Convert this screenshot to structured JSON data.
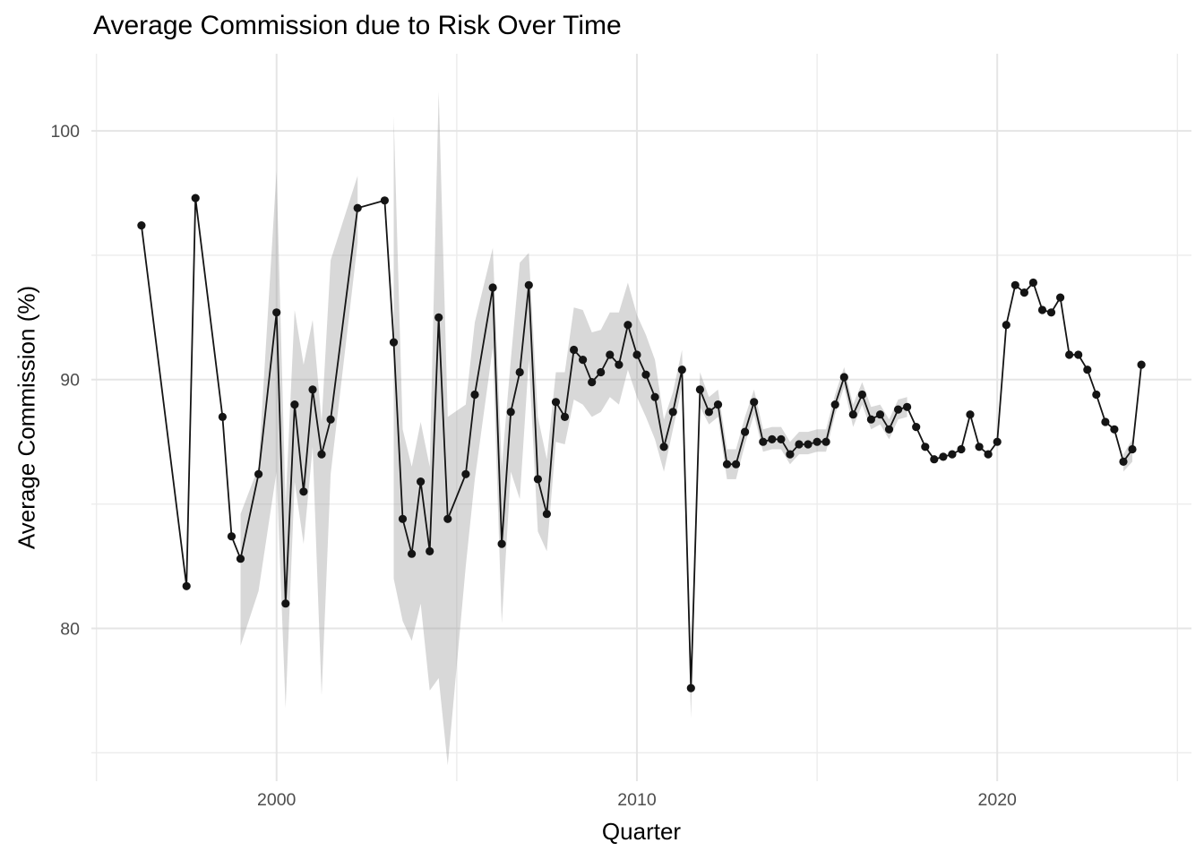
{
  "title": "Average Commission due to Risk Over Time",
  "chart_data": {
    "type": "line",
    "title": "Average Commission due to Risk Over Time",
    "xlabel": "Quarter",
    "ylabel": "Average Commission (%)",
    "legend_position": "none",
    "grid": true,
    "marker": "circle",
    "x_tick_labels": [
      "2000",
      "2010",
      "2020"
    ],
    "x_tick_years": [
      2000,
      2010,
      2020
    ],
    "x_minor_years": [
      1995,
      2005,
      2015,
      2025
    ],
    "y_tick_labels": [
      "100",
      "90",
      "80"
    ],
    "y_tick_values": [
      100,
      90,
      80
    ],
    "y_minor_values": [
      95,
      85,
      75
    ],
    "xlim": [
      1994.86,
      2025.39
    ],
    "ylim": [
      73.86,
      103.1
    ],
    "x_unit": "decimal year (quarterly)",
    "points": [
      [
        1996.25,
        96.2
      ],
      [
        1997.5,
        81.7
      ],
      [
        1997.75,
        97.3
      ],
      [
        1998.5,
        88.5
      ],
      [
        1998.75,
        83.7
      ],
      [
        1999.0,
        82.8
      ],
      [
        1999.5,
        86.2
      ],
      [
        2000.0,
        92.7
      ],
      [
        2000.25,
        81.0
      ],
      [
        2000.5,
        89.0
      ],
      [
        2000.75,
        85.5
      ],
      [
        2001.0,
        89.6
      ],
      [
        2001.25,
        87.0
      ],
      [
        2001.5,
        88.4
      ],
      [
        2002.25,
        96.9
      ],
      [
        2003.0,
        97.2
      ],
      [
        2003.25,
        91.5
      ],
      [
        2003.5,
        84.4
      ],
      [
        2003.75,
        83.0
      ],
      [
        2004.0,
        85.9
      ],
      [
        2004.25,
        83.1
      ],
      [
        2004.5,
        92.5
      ],
      [
        2004.75,
        84.4
      ],
      [
        2005.25,
        86.2
      ],
      [
        2005.5,
        89.4
      ],
      [
        2006.0,
        93.7
      ],
      [
        2006.25,
        83.4
      ],
      [
        2006.5,
        88.7
      ],
      [
        2006.75,
        90.3
      ],
      [
        2007.0,
        93.8
      ],
      [
        2007.25,
        86.0
      ],
      [
        2007.5,
        84.6
      ],
      [
        2007.75,
        89.1
      ],
      [
        2008.0,
        88.5
      ],
      [
        2008.25,
        91.2
      ],
      [
        2008.5,
        90.8
      ],
      [
        2008.75,
        89.9
      ],
      [
        2009.0,
        90.3
      ],
      [
        2009.25,
        91.0
      ],
      [
        2009.5,
        90.6
      ],
      [
        2009.75,
        92.2
      ],
      [
        2010.0,
        91.0
      ],
      [
        2010.25,
        90.2
      ],
      [
        2010.5,
        89.3
      ],
      [
        2010.75,
        87.3
      ],
      [
        2011.0,
        88.7
      ],
      [
        2011.25,
        90.4
      ],
      [
        2011.5,
        77.6
      ],
      [
        2011.75,
        89.6
      ],
      [
        2012.0,
        88.7
      ],
      [
        2012.25,
        89.0
      ],
      [
        2012.5,
        86.6
      ],
      [
        2012.75,
        86.6
      ],
      [
        2013.0,
        87.9
      ],
      [
        2013.25,
        89.1
      ],
      [
        2013.5,
        87.5
      ],
      [
        2013.75,
        87.6
      ],
      [
        2014.0,
        87.6
      ],
      [
        2014.25,
        87.0
      ],
      [
        2014.5,
        87.4
      ],
      [
        2014.75,
        87.4
      ],
      [
        2015.0,
        87.5
      ],
      [
        2015.25,
        87.5
      ],
      [
        2015.5,
        89.0
      ],
      [
        2015.75,
        90.1
      ],
      [
        2016.0,
        88.6
      ],
      [
        2016.25,
        89.4
      ],
      [
        2016.5,
        88.4
      ],
      [
        2016.75,
        88.6
      ],
      [
        2017.0,
        88.0
      ],
      [
        2017.25,
        88.8
      ],
      [
        2017.5,
        88.9
      ],
      [
        2017.75,
        88.1
      ],
      [
        2018.0,
        87.3
      ],
      [
        2018.25,
        86.8
      ],
      [
        2018.5,
        86.9
      ],
      [
        2018.75,
        87.0
      ],
      [
        2019.0,
        87.2
      ],
      [
        2019.25,
        88.6
      ],
      [
        2019.5,
        87.3
      ],
      [
        2019.75,
        87.0
      ],
      [
        2020.0,
        87.5
      ],
      [
        2020.25,
        92.2
      ],
      [
        2020.5,
        93.8
      ],
      [
        2020.75,
        93.5
      ],
      [
        2021.0,
        93.9
      ],
      [
        2021.25,
        92.8
      ],
      [
        2021.5,
        92.7
      ],
      [
        2021.75,
        93.3
      ],
      [
        2022.0,
        91.0
      ],
      [
        2022.25,
        91.0
      ],
      [
        2022.5,
        90.4
      ],
      [
        2022.75,
        89.4
      ],
      [
        2023.0,
        88.3
      ],
      [
        2023.25,
        88.0
      ],
      [
        2023.5,
        86.7
      ],
      [
        2023.75,
        87.2
      ],
      [
        2024.0,
        90.6
      ]
    ],
    "ribbon_segments": [
      [
        [
          1999.0,
          79.3,
          84.6
        ],
        [
          1999.5,
          81.5,
          86.5
        ],
        [
          2000.0,
          86.3,
          98.4
        ],
        [
          2000.25,
          76.8,
          85.0
        ],
        [
          2000.5,
          85.9,
          92.8
        ],
        [
          2000.75,
          83.4,
          90.6
        ],
        [
          2001.0,
          87.3,
          92.4
        ],
        [
          2001.25,
          77.3,
          88.3
        ],
        [
          2001.5,
          86.2,
          94.8
        ],
        [
          2002.25,
          95.5,
          98.2
        ]
      ],
      [
        [
          2003.25,
          82.0,
          100.6
        ],
        [
          2003.5,
          80.3,
          88.0
        ],
        [
          2003.75,
          79.5,
          86.5
        ],
        [
          2004.0,
          81.0,
          88.3
        ],
        [
          2004.25,
          77.5,
          86.5
        ],
        [
          2004.5,
          78.0,
          101.6
        ],
        [
          2004.75,
          74.5,
          88.5
        ],
        [
          2005.25,
          82.5,
          89.0
        ],
        [
          2005.5,
          86.0,
          92.3
        ],
        [
          2006.0,
          91.3,
          95.3
        ],
        [
          2006.25,
          80.2,
          86.5
        ],
        [
          2006.5,
          86.3,
          90.8
        ],
        [
          2006.75,
          85.2,
          94.7
        ],
        [
          2007.0,
          90.8,
          95.1
        ],
        [
          2007.25,
          83.9,
          88.5
        ],
        [
          2007.5,
          83.1,
          86.8
        ],
        [
          2007.75,
          87.5,
          90.3
        ],
        [
          2008.0,
          87.4,
          90.3
        ],
        [
          2008.25,
          89.2,
          92.9
        ],
        [
          2008.5,
          89.0,
          92.8
        ],
        [
          2008.75,
          88.5,
          91.9
        ],
        [
          2009.0,
          88.7,
          92.0
        ],
        [
          2009.25,
          89.3,
          92.7
        ],
        [
          2009.5,
          89.0,
          92.7
        ],
        [
          2009.75,
          90.4,
          93.9
        ],
        [
          2010.0,
          89.3,
          92.6
        ],
        [
          2010.25,
          88.5,
          91.8
        ],
        [
          2010.5,
          87.6,
          90.8
        ],
        [
          2010.75,
          86.3,
          88.4
        ],
        [
          2011.0,
          88.0,
          89.5
        ],
        [
          2011.25,
          89.7,
          91.2
        ],
        [
          2011.5,
          76.4,
          78.8
        ],
        [
          2011.75,
          88.9,
          90.3
        ],
        [
          2012.0,
          88.2,
          89.3
        ],
        [
          2012.25,
          88.5,
          89.6
        ],
        [
          2012.5,
          86.0,
          87.2
        ],
        [
          2012.75,
          86.0,
          87.2
        ],
        [
          2013.0,
          87.4,
          88.5
        ],
        [
          2013.25,
          88.6,
          89.6
        ],
        [
          2013.5,
          87.1,
          88.0
        ],
        [
          2013.75,
          87.2,
          88.1
        ],
        [
          2014.0,
          87.2,
          88.1
        ],
        [
          2014.25,
          86.6,
          87.5
        ],
        [
          2014.5,
          87.0,
          87.9
        ],
        [
          2014.75,
          87.0,
          87.9
        ],
        [
          2015.0,
          87.1,
          88.0
        ],
        [
          2015.25,
          87.1,
          88.0
        ],
        [
          2015.5,
          88.6,
          89.4
        ],
        [
          2015.75,
          89.7,
          90.5
        ],
        [
          2016.0,
          88.1,
          89.0
        ],
        [
          2016.25,
          89.0,
          89.9
        ],
        [
          2016.5,
          88.0,
          88.9
        ],
        [
          2016.75,
          88.2,
          89.0
        ],
        [
          2017.0,
          87.6,
          88.4
        ],
        [
          2017.25,
          88.4,
          89.2
        ],
        [
          2017.5,
          88.5,
          89.3
        ]
      ],
      [
        [
          2023.5,
          86.3,
          87.0
        ],
        [
          2023.75,
          86.7,
          87.6
        ]
      ]
    ],
    "colors": {
      "background": "#FFFFFF",
      "grid_major": "#E5E5E5",
      "grid_minor": "#ECECEC",
      "line": "#141414",
      "point": "#141414",
      "ribbon": "#999999",
      "ribbon_opacity": 0.38,
      "tick_text": "#4D4D4D",
      "title_text": "#000000"
    }
  }
}
